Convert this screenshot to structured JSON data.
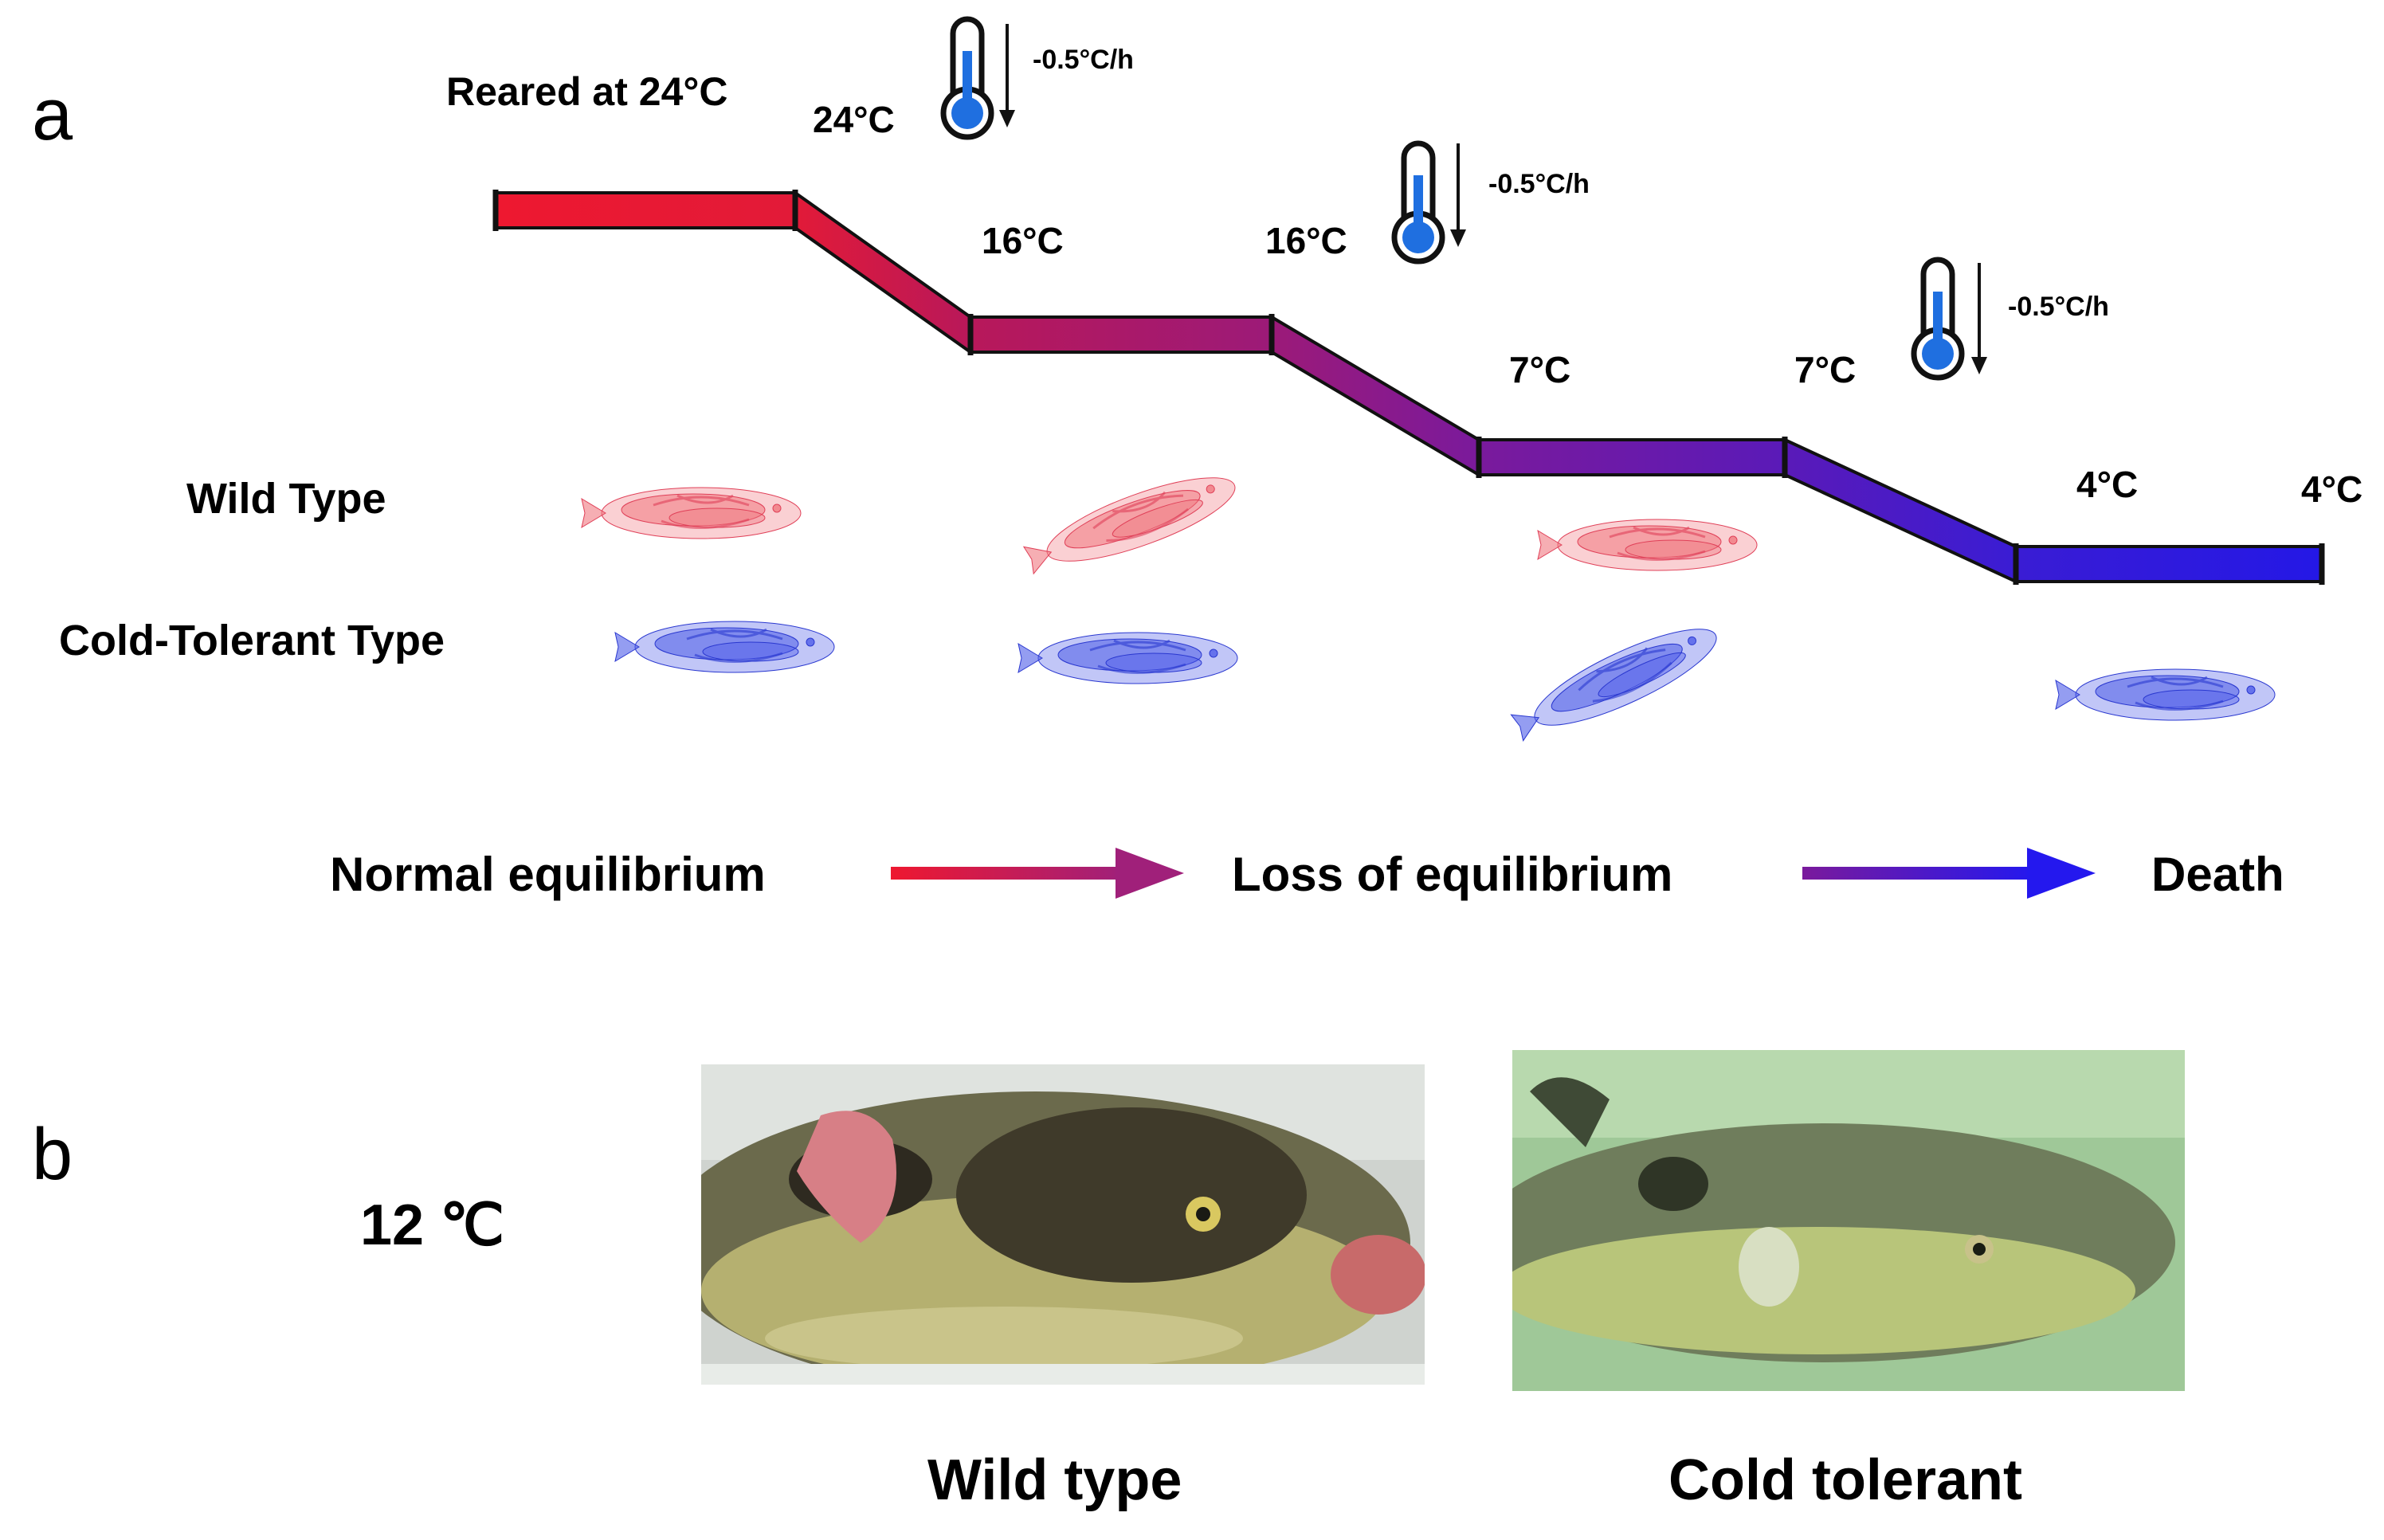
{
  "panel_a": {
    "letter": "a",
    "reared_label": "Reared at 24°C",
    "rows": {
      "wild": "Wild Type",
      "cold": "Cold-Tolerant Type"
    },
    "rate": "-0.5°C/h",
    "temps": [
      "24°C",
      "16°C",
      "16°C",
      "7°C",
      "7°C",
      "4°C",
      "4°C"
    ],
    "legend": {
      "normal": "Normal equilibrium",
      "loss": "Loss of equilibrium",
      "death": "Death"
    },
    "icon": "thermometer-icon",
    "colors": {
      "red": "#e8112d",
      "magenta": "#b0175e",
      "purple": "#7a1a9a",
      "blue": "#2a1ee0",
      "wild_fish": "#f07880",
      "cold_fish": "#4d5ce8"
    }
  },
  "panel_b": {
    "letter": "b",
    "temp_label": "12 ℃",
    "captions": {
      "wild": "Wild type",
      "cold": "Cold tolerant"
    }
  }
}
